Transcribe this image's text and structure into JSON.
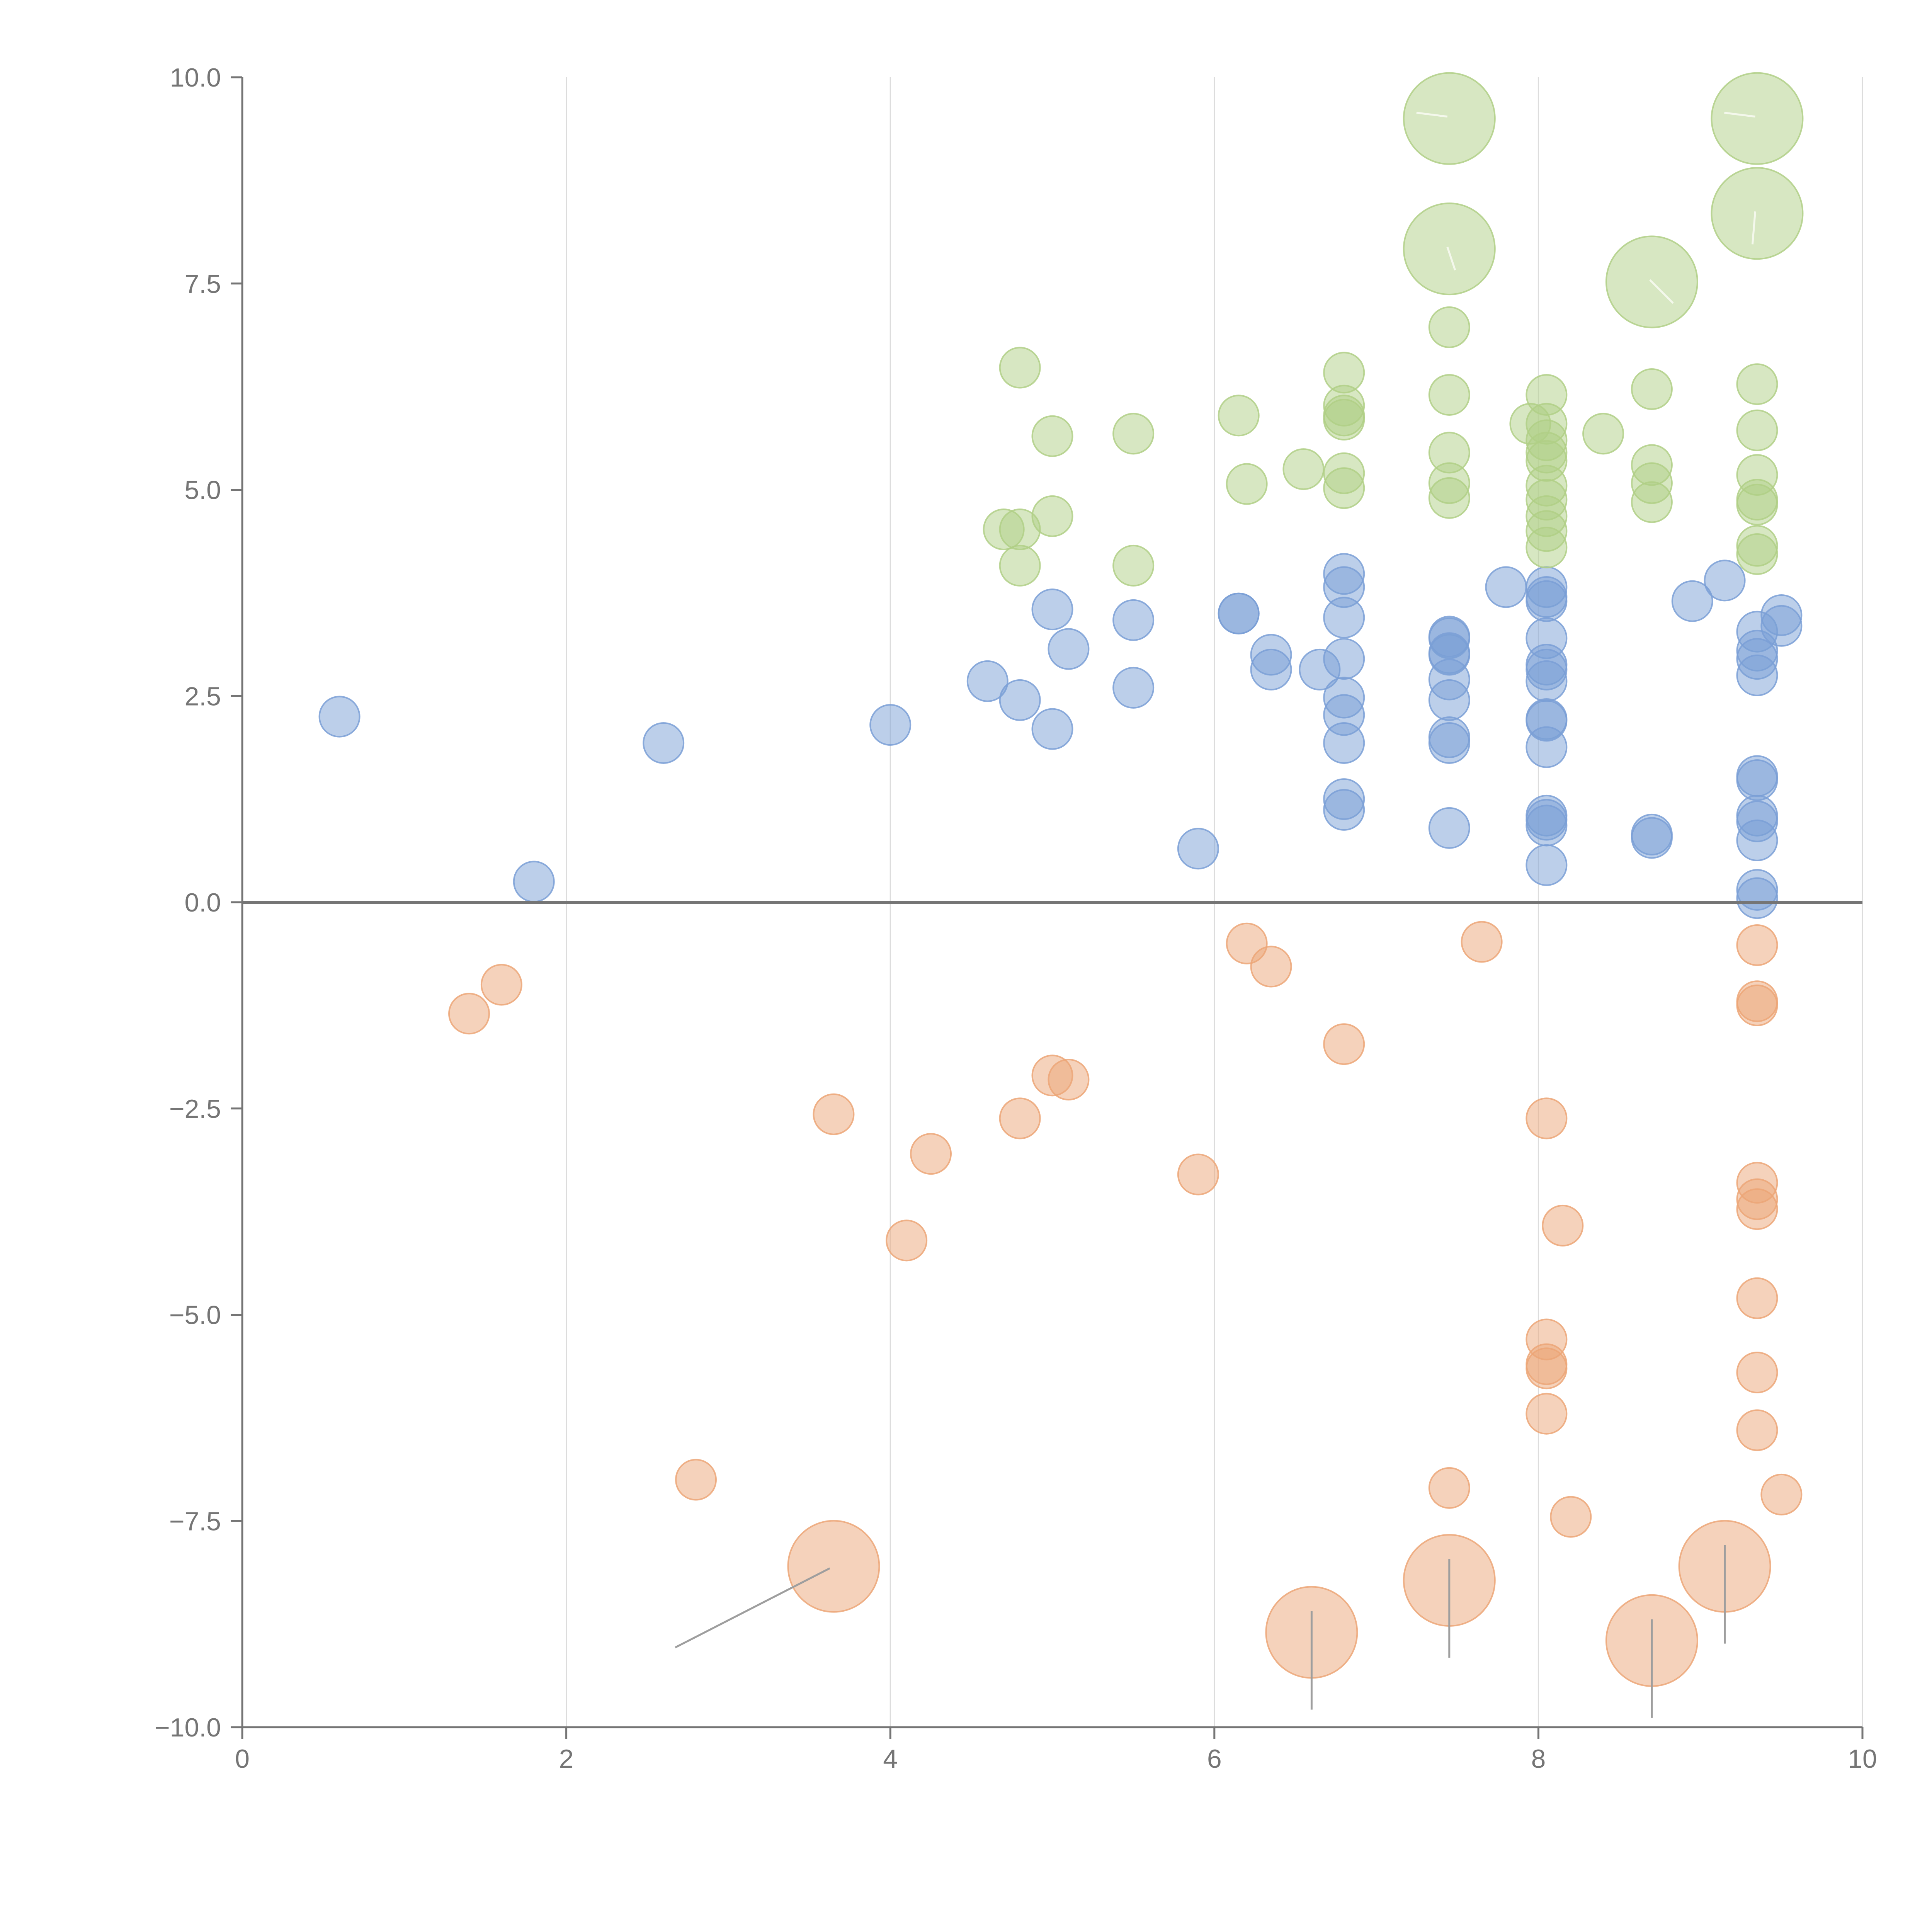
{
  "chart_data": {
    "type": "scatter",
    "title": "",
    "xlabel": "",
    "ylabel": "",
    "xlim": [
      0,
      10
    ],
    "ylim": [
      -10,
      10
    ],
    "x_ticks": [
      "0",
      "2",
      "4",
      "6",
      "8",
      "10"
    ],
    "y_ticks": [
      "10.0",
      "7.5",
      "5.0",
      "2.5",
      "0.0",
      "−2.5",
      "−5.0",
      "−7.5",
      "−10.0"
    ],
    "vertical_grid": true,
    "horizontal_grid": false,
    "zero_line": true,
    "legend": "none",
    "colors": {
      "blue": "#7a9fd6",
      "green": "#b0cf86",
      "orange": "#eca677"
    },
    "series": [
      {
        "color_key": "blue",
        "points": [
          [
            0.6,
            2.25
          ],
          [
            1.8,
            0.25
          ],
          [
            2.6,
            1.93
          ],
          [
            4.0,
            2.15
          ],
          [
            4.6,
            2.68
          ],
          [
            4.8,
            2.45
          ],
          [
            5.0,
            3.55
          ],
          [
            5.0,
            2.1
          ],
          [
            5.1,
            3.07
          ],
          [
            5.5,
            2.6
          ],
          [
            5.5,
            3.42
          ],
          [
            5.9,
            0.65
          ],
          [
            6.15,
            3.5
          ],
          [
            6.15,
            3.5
          ],
          [
            6.35,
            3.0
          ],
          [
            6.35,
            2.82
          ],
          [
            6.65,
            2.82
          ],
          [
            6.8,
            3.98
          ],
          [
            6.8,
            3.82
          ],
          [
            6.8,
            3.45
          ],
          [
            6.8,
            2.95
          ],
          [
            6.8,
            2.48
          ],
          [
            6.8,
            2.27
          ],
          [
            6.8,
            1.93
          ],
          [
            6.8,
            1.25
          ],
          [
            6.8,
            1.12
          ],
          [
            7.45,
            3.2
          ],
          [
            7.45,
            3.0
          ],
          [
            7.45,
            3.22
          ],
          [
            7.45,
            3.02
          ],
          [
            7.45,
            2.7
          ],
          [
            7.45,
            2.45
          ],
          [
            7.45,
            2.0
          ],
          [
            7.45,
            1.93
          ],
          [
            7.45,
            0.9
          ],
          [
            7.8,
            3.82
          ],
          [
            8.05,
            3.82
          ],
          [
            8.05,
            3.7
          ],
          [
            8.05,
            3.65
          ],
          [
            8.05,
            3.2
          ],
          [
            8.05,
            2.88
          ],
          [
            8.05,
            2.82
          ],
          [
            8.05,
            2.68
          ],
          [
            8.05,
            2.22
          ],
          [
            8.05,
            2.2
          ],
          [
            8.05,
            1.88
          ],
          [
            8.05,
            1.05
          ],
          [
            8.05,
            1.0
          ],
          [
            8.05,
            0.93
          ],
          [
            8.05,
            0.45
          ],
          [
            8.7,
            0.82
          ],
          [
            8.7,
            0.78
          ],
          [
            8.95,
            3.65
          ],
          [
            9.15,
            3.9
          ],
          [
            9.35,
            3.28
          ],
          [
            9.35,
            3.05
          ],
          [
            9.35,
            2.95
          ],
          [
            9.35,
            2.75
          ],
          [
            9.35,
            1.53
          ],
          [
            9.35,
            1.48
          ],
          [
            9.35,
            1.05
          ],
          [
            9.35,
            0.98
          ],
          [
            9.35,
            0.75
          ],
          [
            9.35,
            0.15
          ],
          [
            9.35,
            0.05
          ],
          [
            9.5,
            3.48
          ],
          [
            9.5,
            3.35
          ]
        ]
      },
      {
        "color_key": "green",
        "points": [
          [
            4.7,
            4.52
          ],
          [
            4.8,
            4.52
          ],
          [
            4.8,
            4.08
          ],
          [
            4.8,
            6.48
          ],
          [
            5.0,
            5.65
          ],
          [
            5.0,
            4.68
          ],
          [
            5.5,
            5.68
          ],
          [
            5.5,
            4.08
          ],
          [
            6.15,
            5.9
          ],
          [
            6.2,
            5.07
          ],
          [
            6.55,
            5.25
          ],
          [
            6.8,
            6.42
          ],
          [
            6.8,
            6.02
          ],
          [
            6.8,
            5.9
          ],
          [
            6.8,
            5.85
          ],
          [
            6.8,
            5.2
          ],
          [
            6.8,
            5.02
          ],
          [
            7.45,
            6.97
          ],
          [
            7.45,
            6.15
          ],
          [
            7.45,
            5.45
          ],
          [
            7.45,
            5.08
          ],
          [
            7.45,
            4.9
          ],
          [
            7.95,
            5.8
          ],
          [
            8.05,
            6.15
          ],
          [
            8.05,
            5.8
          ],
          [
            8.05,
            5.6
          ],
          [
            8.05,
            5.45
          ],
          [
            8.05,
            5.35
          ],
          [
            8.05,
            5.05
          ],
          [
            8.05,
            4.88
          ],
          [
            8.05,
            4.68
          ],
          [
            8.05,
            4.5
          ],
          [
            8.05,
            4.3
          ],
          [
            8.4,
            5.68
          ],
          [
            8.7,
            6.22
          ],
          [
            8.7,
            5.3
          ],
          [
            8.7,
            5.08
          ],
          [
            8.7,
            4.85
          ],
          [
            9.35,
            6.28
          ],
          [
            9.35,
            5.72
          ],
          [
            9.35,
            5.18
          ],
          [
            9.35,
            4.88
          ],
          [
            9.35,
            4.82
          ],
          [
            9.35,
            4.32
          ],
          [
            9.35,
            4.22
          ]
        ],
        "large_points": [
          [
            7.45,
            9.5
          ],
          [
            7.45,
            7.92
          ],
          [
            8.7,
            7.52
          ],
          [
            9.35,
            9.5
          ],
          [
            9.35,
            8.35
          ]
        ]
      },
      {
        "color_key": "orange",
        "points": [
          [
            1.4,
            -1.35
          ],
          [
            1.6,
            -1.0
          ],
          [
            2.8,
            -7.0
          ],
          [
            3.65,
            -2.57
          ],
          [
            4.1,
            -4.1
          ],
          [
            4.25,
            -3.05
          ],
          [
            4.8,
            -2.62
          ],
          [
            5.0,
            -2.1
          ],
          [
            5.1,
            -2.15
          ],
          [
            5.9,
            -3.3
          ],
          [
            6.2,
            -0.5
          ],
          [
            6.35,
            -0.78
          ],
          [
            6.8,
            -1.72
          ],
          [
            7.45,
            -7.1
          ],
          [
            7.65,
            -0.48
          ],
          [
            8.05,
            -2.62
          ],
          [
            8.05,
            -5.3
          ],
          [
            8.05,
            -5.6
          ],
          [
            8.05,
            -5.65
          ],
          [
            8.05,
            -6.2
          ],
          [
            8.15,
            -3.92
          ],
          [
            8.2,
            -7.45
          ],
          [
            9.35,
            -0.52
          ],
          [
            9.35,
            -1.2
          ],
          [
            9.35,
            -1.25
          ],
          [
            9.35,
            -3.4
          ],
          [
            9.35,
            -3.6
          ],
          [
            9.35,
            -3.72
          ],
          [
            9.35,
            -4.8
          ],
          [
            9.35,
            -5.7
          ],
          [
            9.35,
            -6.4
          ],
          [
            9.5,
            -7.18
          ]
        ],
        "large_points": [
          [
            3.65,
            -8.05
          ],
          [
            6.6,
            -8.85
          ],
          [
            7.45,
            -8.22
          ],
          [
            8.7,
            -8.95
          ],
          [
            9.15,
            -8.05
          ]
        ]
      }
    ]
  }
}
